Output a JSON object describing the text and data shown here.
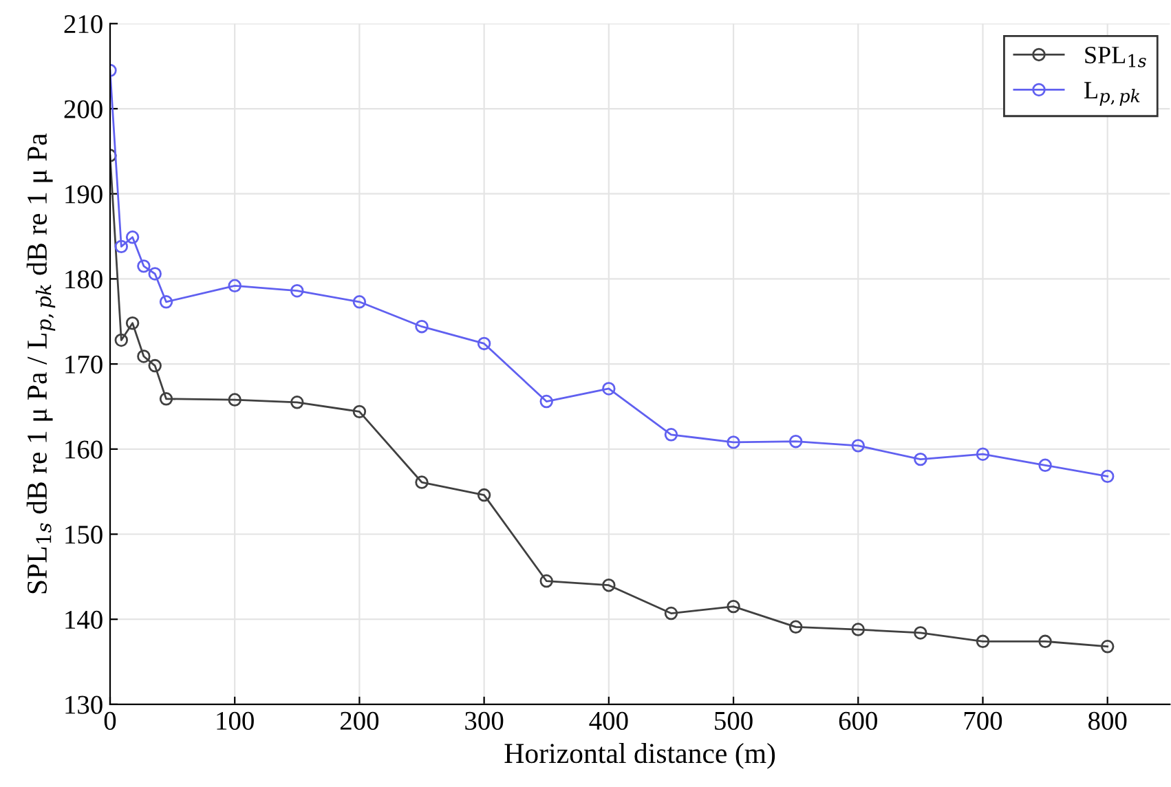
{
  "chart_data": {
    "type": "line",
    "xlabel": "Horizontal distance (m)",
    "ylabel": "SPL$_{1s}$ dB re 1 μ Pa / L$_{p,pk}$ dB re 1 μ Pa",
    "x": [
      0,
      9,
      18,
      27,
      36,
      45,
      100,
      150,
      200,
      250,
      300,
      350,
      400,
      450,
      500,
      550,
      600,
      650,
      700,
      750,
      800
    ],
    "series": [
      {
        "name": "SPL$_{1s}$",
        "color": "#404040",
        "values": [
          194.5,
          172.8,
          174.8,
          170.9,
          169.8,
          165.9,
          165.8,
          165.5,
          164.4,
          156.1,
          154.6,
          144.5,
          144.0,
          140.7,
          141.5,
          139.1,
          138.8,
          138.4,
          137.4,
          137.4,
          136.8
        ]
      },
      {
        "name": "L$_{p,pk}$",
        "color": "#6060f0",
        "values": [
          204.5,
          183.8,
          184.9,
          181.5,
          180.6,
          177.3,
          179.2,
          178.6,
          177.3,
          174.4,
          172.4,
          165.6,
          167.1,
          161.7,
          160.8,
          160.9,
          160.4,
          158.8,
          159.4,
          158.1,
          156.8
        ]
      }
    ],
    "xlim": [
      0,
      850
    ],
    "xticks": [
      0,
      100,
      200,
      300,
      400,
      500,
      600,
      700,
      800
    ],
    "ylim": [
      130,
      210
    ],
    "yticks": [
      130,
      140,
      150,
      160,
      170,
      180,
      190,
      200,
      210
    ],
    "grid": true,
    "legend": "top right",
    "marker": "circle",
    "line_style": "solid"
  }
}
